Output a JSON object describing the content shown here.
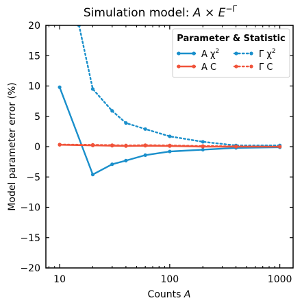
{
  "chart_data": {
    "type": "line",
    "title": {
      "prefix": "Simulation model: ",
      "math": "A × E",
      "superscript": "−Γ"
    },
    "xlabel": {
      "text": "Counts ",
      "math": "A"
    },
    "ylabel": "Model parameter error (%)",
    "x_scale": "log",
    "xlim": [
      7.5,
      1320
    ],
    "ylim": [
      -20,
      20
    ],
    "x_ticks": [
      {
        "value": 10,
        "label": "10"
      },
      {
        "value": 100,
        "label": "100"
      },
      {
        "value": 1000,
        "label": "1000"
      }
    ],
    "y_ticks": [
      {
        "value": -20,
        "label": "−20"
      },
      {
        "value": -15,
        "label": "−15"
      },
      {
        "value": -10,
        "label": "−10"
      },
      {
        "value": -5,
        "label": "−5"
      },
      {
        "value": 0,
        "label": "0"
      },
      {
        "value": 5,
        "label": "5"
      },
      {
        "value": 10,
        "label": "10"
      },
      {
        "value": 15,
        "label": "15"
      },
      {
        "value": 20,
        "label": "20"
      }
    ],
    "grid": false,
    "legend": {
      "title": "Parameter & Statistic",
      "placement": "top-right",
      "columns": 2
    },
    "series": [
      {
        "name": "A χ2",
        "name_main": "A χ",
        "name_sup": "2",
        "color": "#1a8fcb",
        "dash": "solid",
        "points": [
          [
            10,
            9.8
          ],
          [
            20,
            -4.6
          ],
          [
            30,
            -2.9
          ],
          [
            40,
            -2.3
          ],
          [
            60,
            -1.4
          ],
          [
            100,
            -0.8
          ],
          [
            200,
            -0.5
          ],
          [
            400,
            -0.2
          ],
          [
            1000,
            -0.1
          ]
        ]
      },
      {
        "name": "A C",
        "name_main": "A C",
        "name_sup": "",
        "color": "#f0533a",
        "dash": "solid",
        "points": [
          [
            10,
            0.3
          ],
          [
            20,
            0.2
          ],
          [
            30,
            0.15
          ],
          [
            40,
            0.1
          ],
          [
            60,
            0.15
          ],
          [
            100,
            0.1
          ],
          [
            200,
            0.0
          ],
          [
            400,
            0.0
          ],
          [
            1000,
            0.0
          ]
        ]
      },
      {
        "name": "Γ χ2",
        "name_main": "Γ χ",
        "name_sup": "2",
        "color": "#1a8fcb",
        "dash": "dotted",
        "points": [
          [
            15,
            20
          ],
          [
            20,
            9.5
          ],
          [
            30,
            5.9
          ],
          [
            40,
            3.9
          ],
          [
            60,
            2.9
          ],
          [
            100,
            1.7
          ],
          [
            200,
            0.8
          ],
          [
            400,
            0.2
          ],
          [
            1000,
            0.2
          ]
        ]
      },
      {
        "name": "Γ C",
        "name_main": "Γ C",
        "name_sup": "",
        "color": "#f0533a",
        "dash": "dotted",
        "points": [
          [
            10,
            0.35
          ],
          [
            20,
            0.3
          ],
          [
            30,
            0.25
          ],
          [
            40,
            0.2
          ],
          [
            60,
            0.25
          ],
          [
            100,
            0.2
          ],
          [
            200,
            0.1
          ],
          [
            400,
            0.05
          ],
          [
            1000,
            0.0
          ]
        ]
      }
    ]
  }
}
